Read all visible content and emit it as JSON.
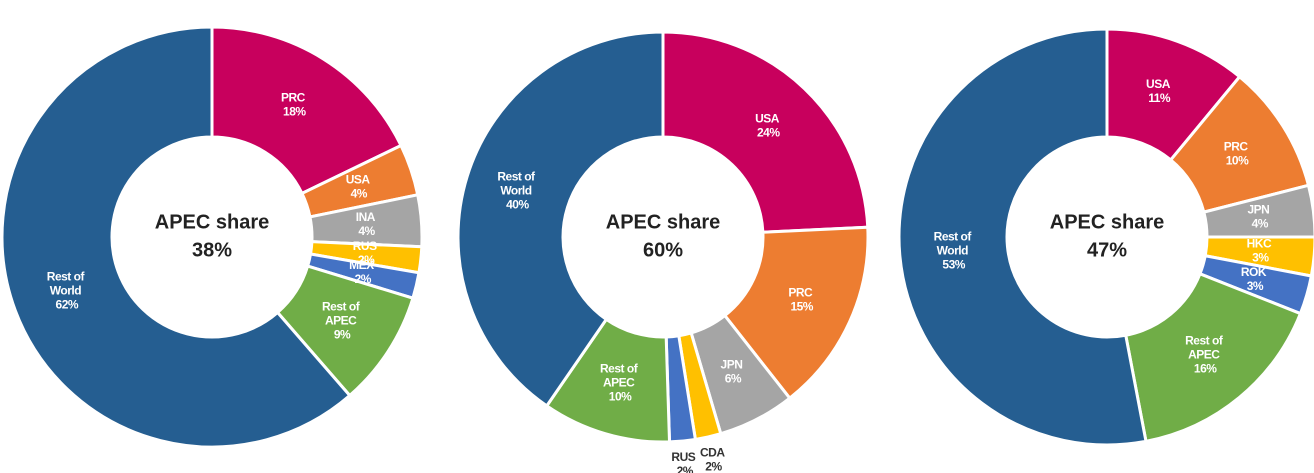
{
  "chart_data": [
    {
      "type": "donut",
      "center_title": "APEC share",
      "center_value": "38%",
      "values": [
        18,
        4,
        4,
        2,
        2,
        9,
        62
      ],
      "value_labels": [
        "PRC 18%",
        "USA 4%",
        "INA 4%",
        "RUS 2%",
        "MEX 2%",
        "Rest of APEC 9%",
        "Rest of World 62%"
      ],
      "colors": [
        "#c8005d",
        "#ed7d31",
        "#a5a5a5",
        "#ffc000",
        "#4472c4",
        "#70ad47",
        "#255e91"
      ]
    },
    {
      "type": "donut",
      "center_title": "APEC share",
      "center_value": "60%",
      "values": [
        24,
        15,
        6,
        2,
        2,
        10,
        40
      ],
      "value_labels": [
        "USA 24%",
        "PRC 15%",
        "JPN 6%",
        "CDA 2%",
        "RUS 2%",
        "Rest of APEC 10%",
        "Rest of World 40%"
      ],
      "colors": [
        "#c8005d",
        "#ed7d31",
        "#a5a5a5",
        "#ffc000",
        "#4472c4",
        "#70ad47",
        "#255e91"
      ]
    },
    {
      "type": "donut",
      "center_title": "APEC share",
      "center_value": "47%",
      "values": [
        11,
        10,
        4,
        3,
        3,
        16,
        53
      ],
      "value_labels": [
        "USA 11%",
        "PRC 10%",
        "JPN 4%",
        "HKC 3%",
        "ROK 3%",
        "Rest of APEC 16%",
        "Rest of World 53%"
      ],
      "colors": [
        "#c8005d",
        "#ed7d31",
        "#a5a5a5",
        "#ffc000",
        "#4472c4",
        "#70ad47",
        "#255e91"
      ]
    }
  ]
}
